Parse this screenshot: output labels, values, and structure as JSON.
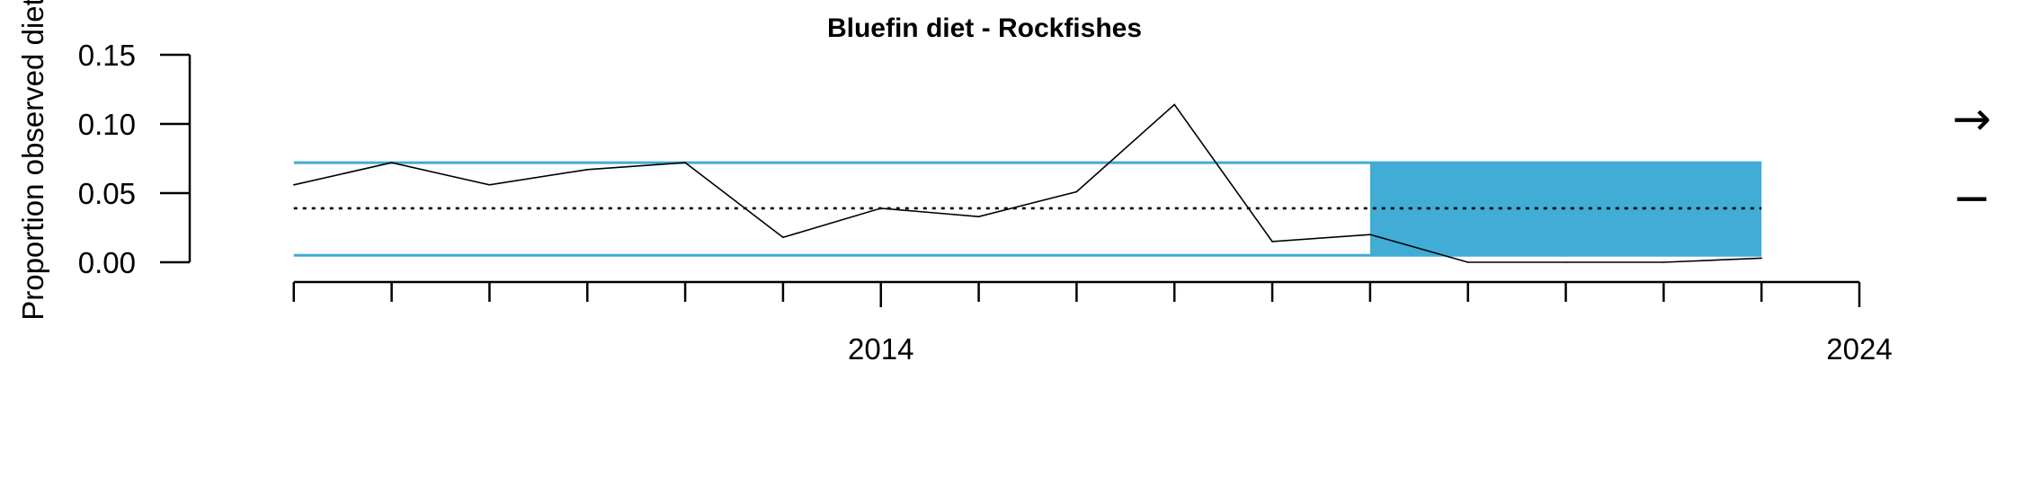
{
  "chart_data": {
    "type": "line",
    "title": "Bluefin diet - Rockfishes",
    "ylabel": "Proportion observed diet",
    "xlabel": "",
    "x": [
      2008,
      2009,
      2010,
      2011,
      2012,
      2013,
      2014,
      2015,
      2016,
      2017,
      2018,
      2019,
      2020,
      2021,
      2022,
      2023
    ],
    "series": [
      {
        "values": [
          0.056,
          0.072,
          0.056,
          0.067,
          0.072,
          0.018,
          0.039,
          0.033,
          0.051,
          0.114,
          0.015,
          0.02,
          0.0,
          0.0,
          0.0,
          0.003
        ]
      }
    ],
    "mean": 0.039,
    "sd_band": [
      0.005,
      0.072
    ],
    "highlight_range": [
      2019,
      2023
    ],
    "xlim": [
      2007.8,
      2024
    ],
    "ylim": [
      0,
      0.15
    ],
    "x_tick_labels": [
      "2014",
      "2024"
    ],
    "y_tick_labels": [
      "0.00",
      "0.05",
      "0.10",
      "0.15"
    ],
    "trend_indicator": "→",
    "mean_indicator": "−",
    "colors": {
      "band": "#41acd6",
      "line": "#000000"
    }
  }
}
